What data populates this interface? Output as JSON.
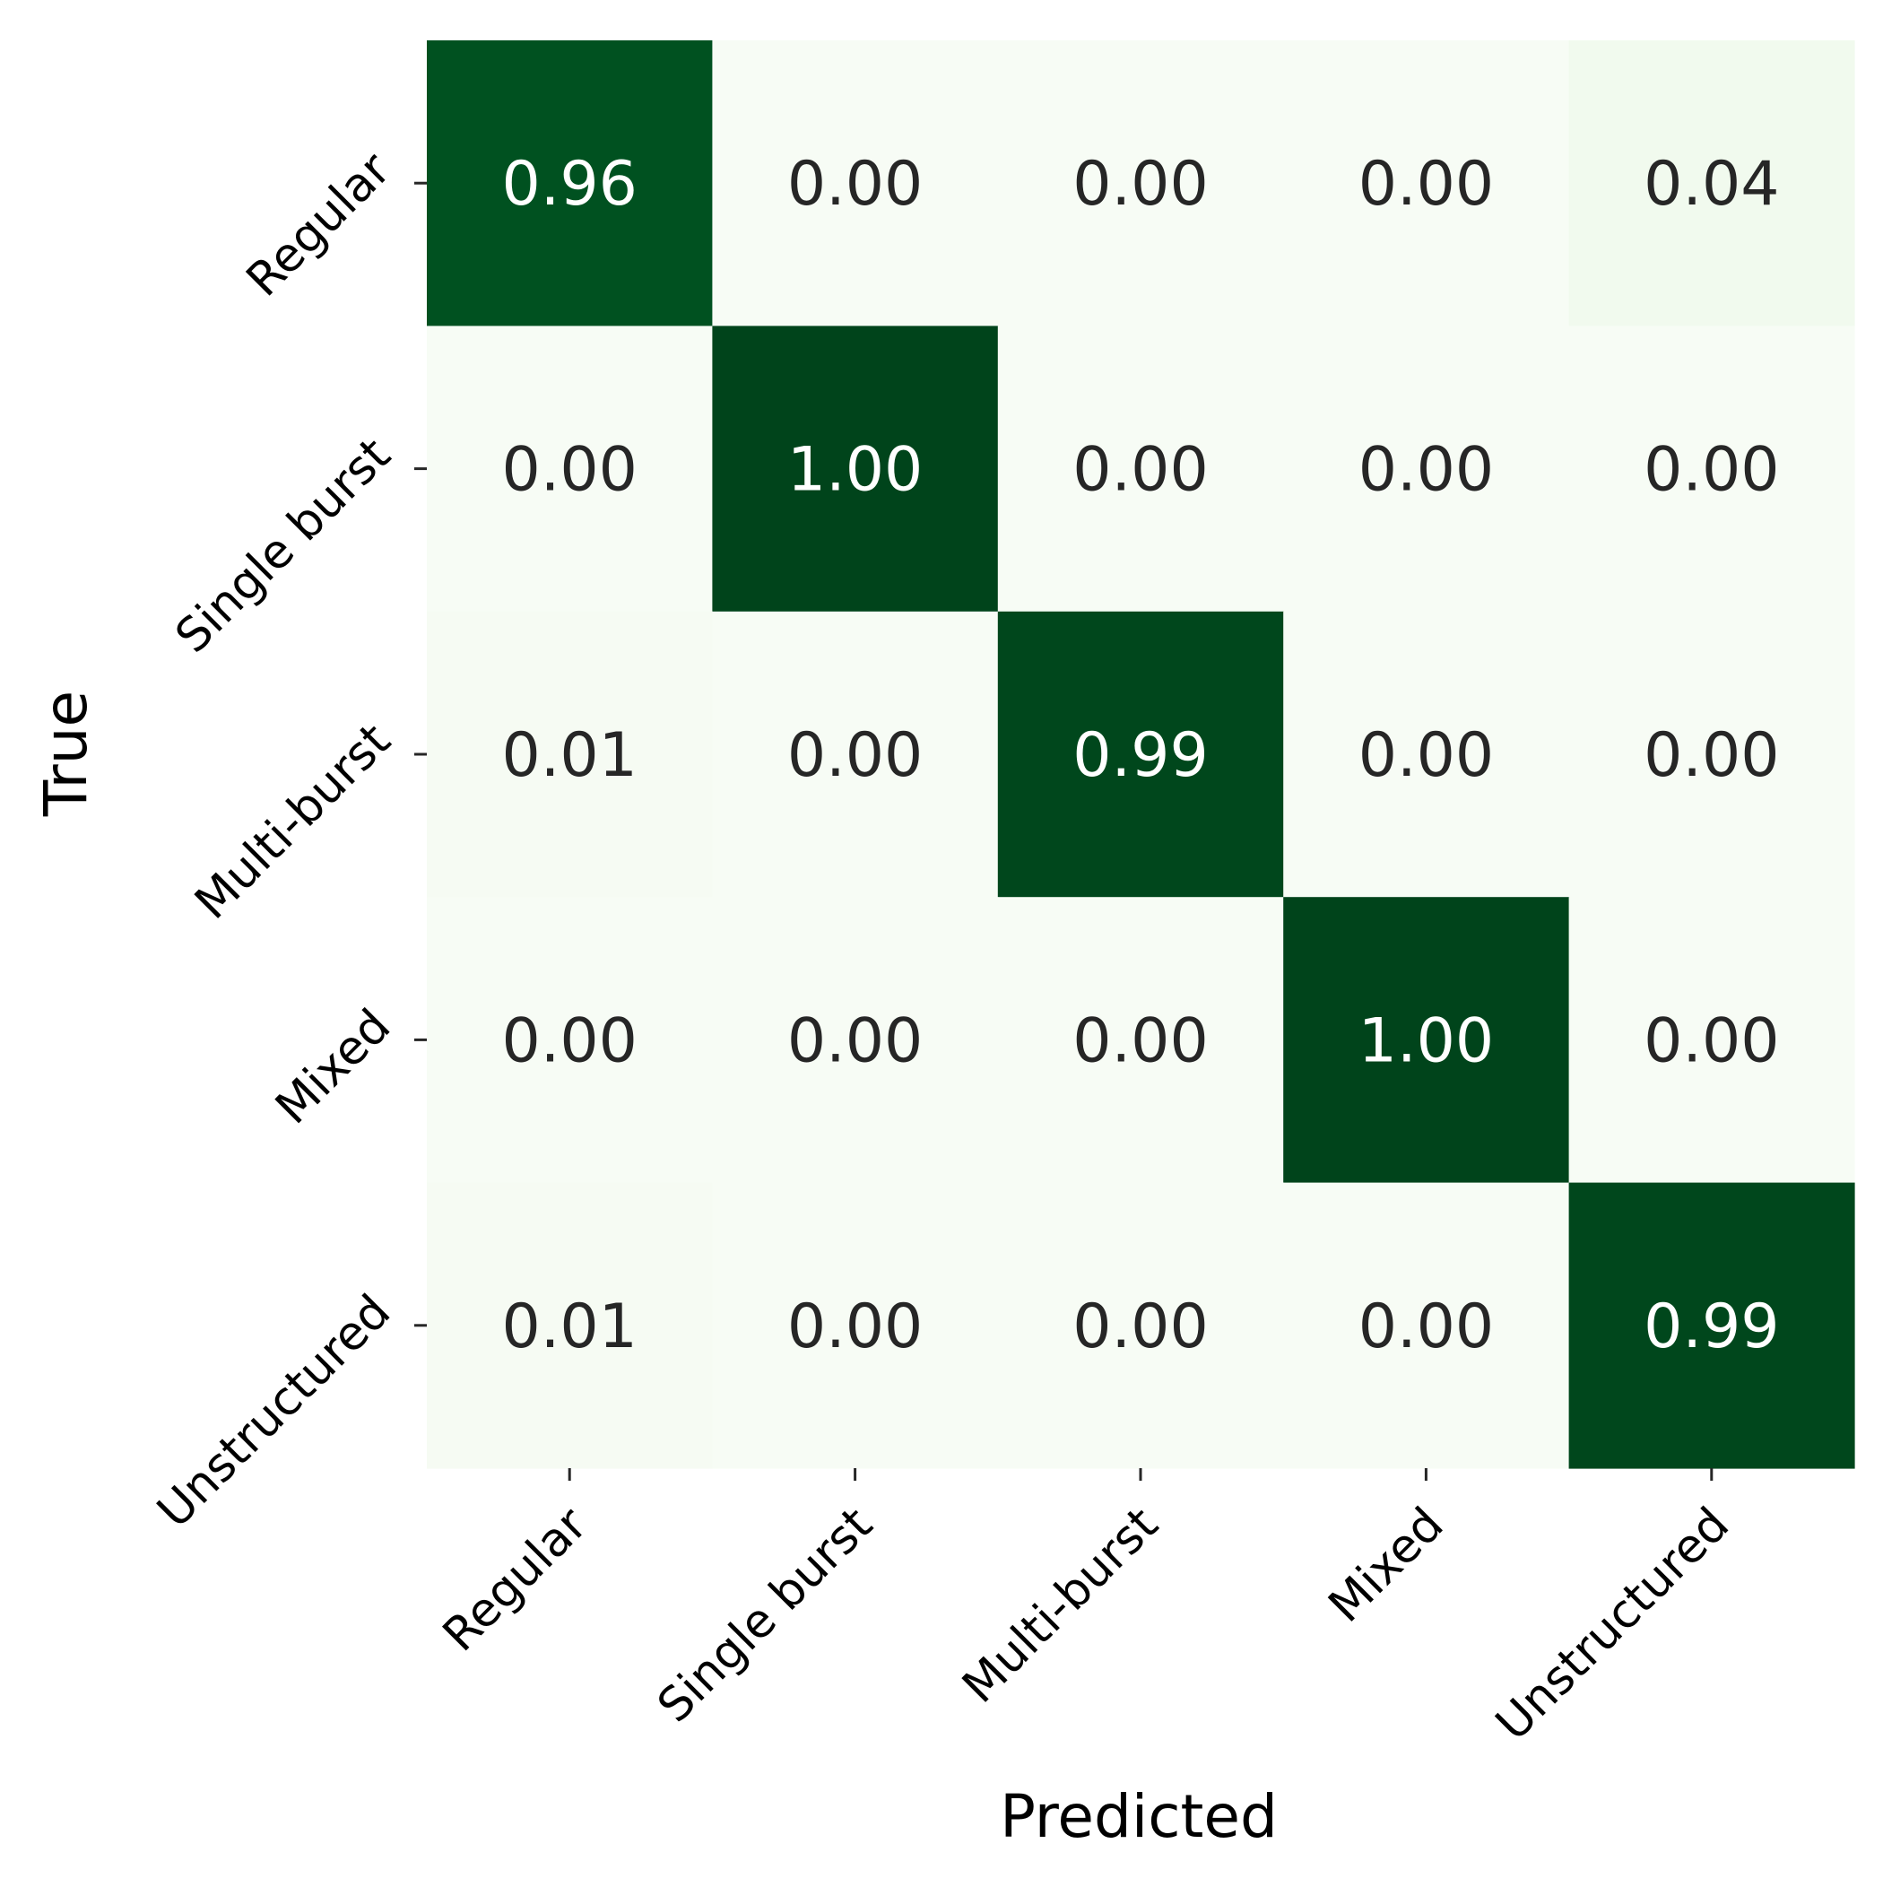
{
  "chart_data": {
    "type": "heatmap",
    "title": "",
    "xlabel": "Predicted",
    "ylabel": "True",
    "x_categories": [
      "Regular",
      "Single burst",
      "Multi-burst",
      "Mixed",
      "Unstructured"
    ],
    "y_categories": [
      "Regular",
      "Single burst",
      "Multi-burst",
      "Mixed",
      "Unstructured"
    ],
    "values": [
      [
        0.96,
        0.0,
        0.0,
        0.0,
        0.04
      ],
      [
        0.0,
        1.0,
        0.0,
        0.0,
        0.0
      ],
      [
        0.01,
        0.0,
        0.99,
        0.0,
        0.0
      ],
      [
        0.0,
        0.0,
        0.0,
        1.0,
        0.0
      ],
      [
        0.01,
        0.0,
        0.0,
        0.0,
        0.99
      ]
    ],
    "value_format": "0.00",
    "colormap": "Greens",
    "vmin": 0,
    "vmax": 1,
    "colors": {
      "low": "#f7fcf5",
      "high": "#00441b",
      "dark_text": "#262626",
      "light_text": "#ffffff"
    },
    "colorbar": false
  }
}
